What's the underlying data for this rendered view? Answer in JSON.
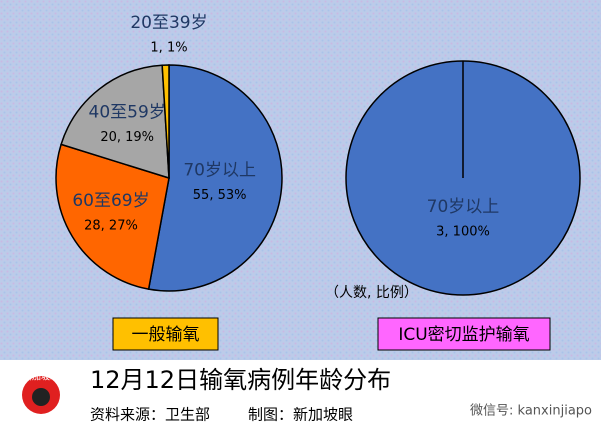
{
  "chart_data": [
    {
      "type": "pie",
      "title": "一般输氧",
      "title_color": "#ffc000",
      "categories": [
        "70岁以上",
        "60至69岁",
        "40至59岁",
        "20至39岁"
      ],
      "values": [
        55,
        28,
        20,
        1
      ],
      "value_labels": [
        "55, 53%",
        "28, 27%",
        "20, 19%",
        "1, 1%"
      ],
      "colors": [
        "#4472c4",
        "#ff6600",
        "#a6a6a6",
        "#ffc000"
      ]
    },
    {
      "type": "pie",
      "title": "ICU密切监护输氧",
      "title_color": "#ff66ff",
      "categories": [
        "70岁以上"
      ],
      "values": [
        3
      ],
      "value_labels": [
        "3, 100%"
      ],
      "colors": [
        "#4472c4"
      ]
    }
  ],
  "unit_note": "（人数, 比例）",
  "title": "12月12日输氧病例年龄分布",
  "source": "资料来源：卫生部",
  "credit": "制图：新加坡眼",
  "logo": "新加坡眼",
  "watermark": "微信号: kanxinjiapo"
}
